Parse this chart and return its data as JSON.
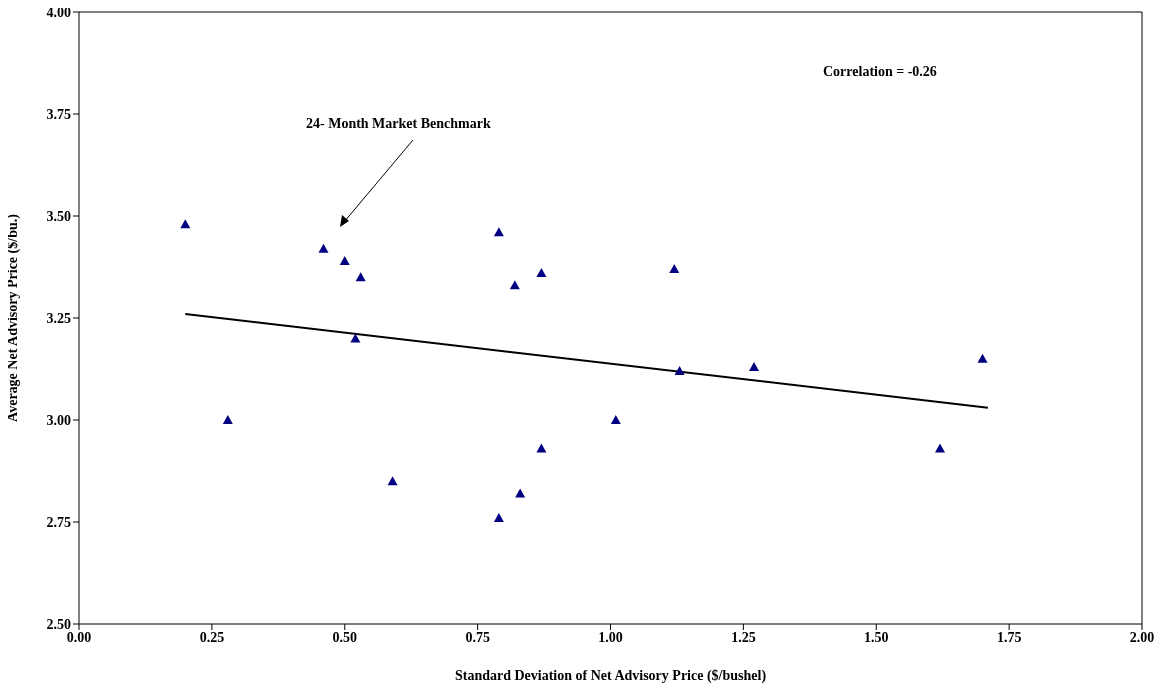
{
  "chart_data": {
    "type": "scatter",
    "xlabel": "Standard Deviation of Net Advisory Price ($/bushel)",
    "ylabel": "Average Net Advisory Price ($/bu.)",
    "annotations": [
      "24- Month Market Benchmark",
      "Correlation = -0.26"
    ],
    "series": [
      {
        "color": "#000080",
        "marker": "triangle",
        "x": [
          0.2,
          0.28,
          0.46,
          0.5,
          0.52,
          0.53,
          0.59,
          0.79,
          0.79,
          0.82,
          0.83,
          0.87,
          0.87,
          1.01,
          1.12,
          1.13,
          1.27,
          1.62,
          1.7
        ],
        "values": [
          3.48,
          3.0,
          3.42,
          3.39,
          3.2,
          3.35,
          2.85,
          3.46,
          2.76,
          3.33,
          2.82,
          2.93,
          3.36,
          3.0,
          3.37,
          3.12,
          3.13,
          2.93,
          3.15
        ]
      },
      {
        "type": "line",
        "color": "#000000",
        "marker": "none",
        "x": [
          0.2,
          1.71
        ],
        "values": [
          3.26,
          3.03
        ]
      }
    ],
    "xlim": [
      0,
      2
    ],
    "ylim": [
      2.5,
      4
    ],
    "xticks": [
      {
        "value": 0,
        "label": "0.00"
      },
      {
        "value": 0.25,
        "label": "0.25"
      },
      {
        "value": 0.5,
        "label": "0.50"
      },
      {
        "value": 0.75,
        "label": "0.75"
      },
      {
        "value": 1,
        "label": "1.00"
      },
      {
        "value": 1.25,
        "label": "1.25"
      },
      {
        "value": 1.5,
        "label": "1.50"
      },
      {
        "value": 1.75,
        "label": "1.75"
      },
      {
        "value": 2,
        "label": "2.00"
      }
    ],
    "yticks": [
      {
        "value": 2.5,
        "label": "2.50"
      },
      {
        "value": 2.75,
        "label": "2.75"
      },
      {
        "value": 3,
        "label": "3.00"
      },
      {
        "value": 3.25,
        "label": "3.25"
      },
      {
        "value": 3.5,
        "label": "3.50"
      },
      {
        "value": 3.75,
        "label": "3.75"
      },
      {
        "value": 4,
        "label": "4.00"
      }
    ],
    "grid": false,
    "legend": false
  }
}
